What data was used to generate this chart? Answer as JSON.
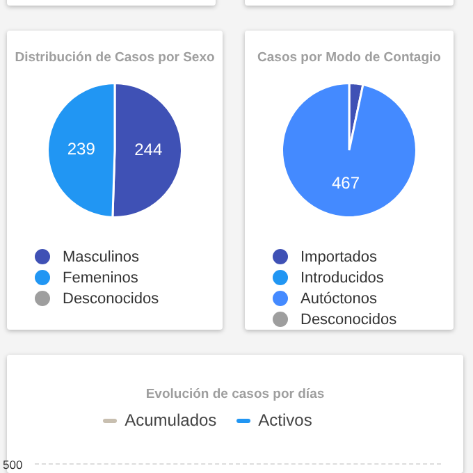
{
  "chart_data": [
    {
      "type": "pie",
      "title": "Distribución de Casos por Sexo",
      "categories": [
        "Masculinos",
        "Femeninos",
        "Desconocidos"
      ],
      "values": [
        244,
        239,
        0
      ],
      "colors": [
        "#3f51b5",
        "#2196f3",
        "#9e9e9e"
      ],
      "data_labels": true,
      "legend": "bottom"
    },
    {
      "type": "pie",
      "title": "Casos por Modo de Contagio",
      "categories": [
        "Importados",
        "Introducidos",
        "Autóctonos",
        "Desconocidos"
      ],
      "values": [
        16,
        0,
        467,
        0
      ],
      "colors": [
        "#3f51b5",
        "#2196f3",
        "#448aff",
        "#9e9e9e"
      ],
      "value_labels": [
        null,
        null,
        "467",
        null
      ],
      "legend": "bottom"
    },
    {
      "type": "other",
      "title": "Evolución de casos por días",
      "series": [
        {
          "name": "Acumulados",
          "color": "#c8bfb0"
        },
        {
          "name": "Activos",
          "color": "#2196f3"
        }
      ],
      "annotations": [
        "500"
      ],
      "legend": "top"
    }
  ]
}
